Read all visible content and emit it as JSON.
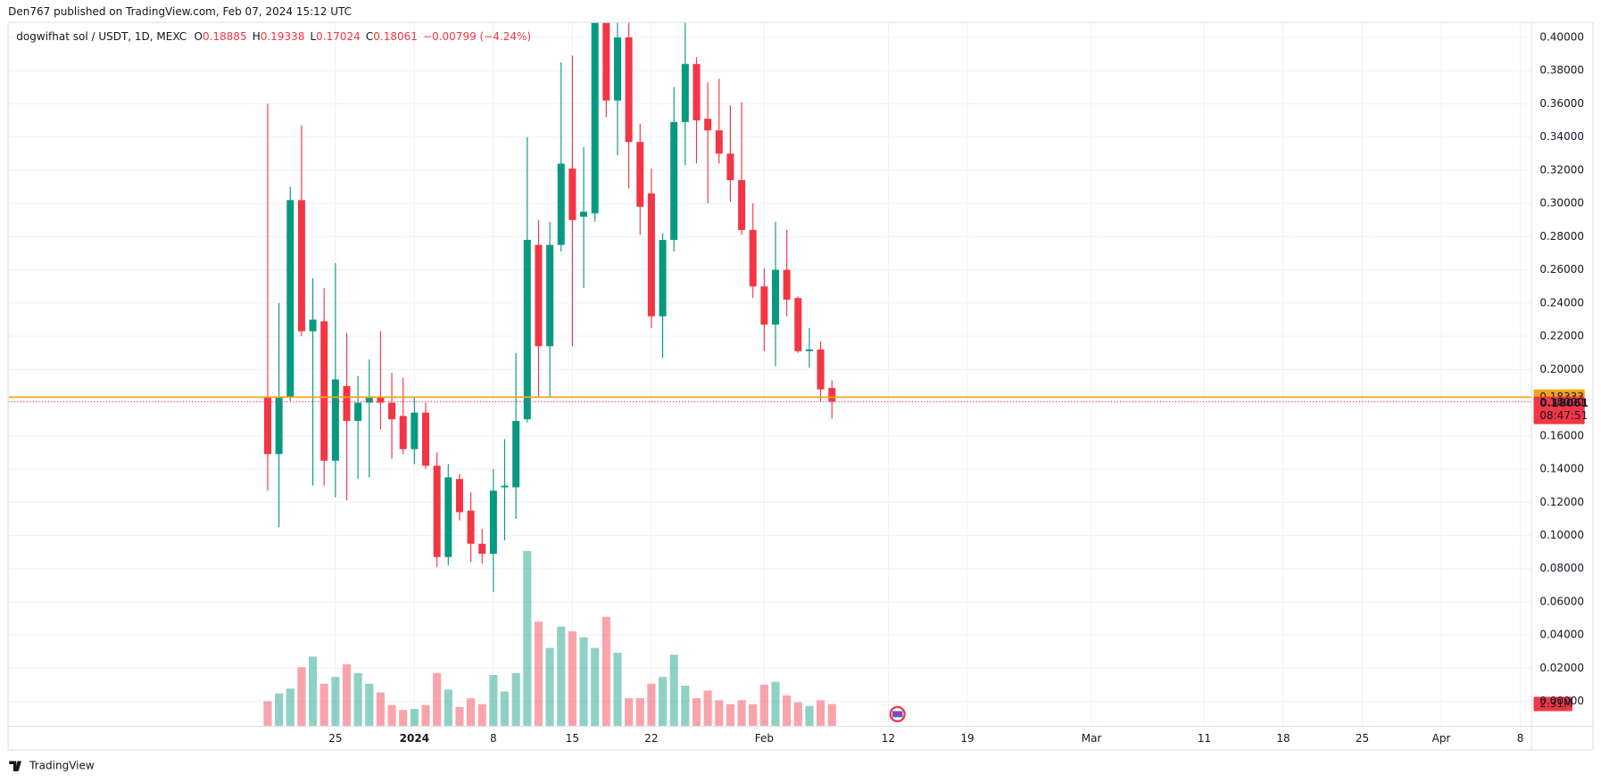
{
  "header": {
    "published": "Den767 published on TradingView.com, Feb 07, 2024 15:12 UTC",
    "symbol": "dogwifhat sol / USDT, 1D, MEXC",
    "ohlc_keys": [
      "O",
      "H",
      "L",
      "C"
    ],
    "change": "−0.00799 (−4.24%)"
  },
  "footer": {
    "brand": "TradingView"
  },
  "chart_data": {
    "type": "candlestick",
    "up_color": "#089981",
    "down_color": "#f23645",
    "x": [
      "2023-12-19",
      "2023-12-20",
      "2023-12-21",
      "2023-12-22",
      "2023-12-23",
      "2023-12-24",
      "2023-12-25",
      "2023-12-26",
      "2023-12-27",
      "2023-12-28",
      "2023-12-29",
      "2023-12-30",
      "2023-12-31",
      "2024-01-01",
      "2024-01-02",
      "2024-01-03",
      "2024-01-04",
      "2024-01-05",
      "2024-01-06",
      "2024-01-07",
      "2024-01-08",
      "2024-01-09",
      "2024-01-10",
      "2024-01-11",
      "2024-01-12",
      "2024-01-13",
      "2024-01-14",
      "2024-01-15",
      "2024-01-16",
      "2024-01-17",
      "2024-01-18",
      "2024-01-19",
      "2024-01-20",
      "2024-01-21",
      "2024-01-22",
      "2024-01-23",
      "2024-01-24",
      "2024-01-25",
      "2024-01-26",
      "2024-01-27",
      "2024-01-28",
      "2024-01-29",
      "2024-01-30",
      "2024-01-31",
      "2024-02-01",
      "2024-02-02",
      "2024-02-03",
      "2024-02-04",
      "2024-02-05",
      "2024-02-06",
      "2024-02-07"
    ],
    "open": [
      0.183,
      0.149,
      0.183,
      0.302,
      0.223,
      0.229,
      0.145,
      0.19,
      0.169,
      0.18,
      0.183,
      0.18,
      0.172,
      0.152,
      0.174,
      0.142,
      0.087,
      0.134,
      0.115,
      0.095,
      0.089,
      0.129,
      0.129,
      0.17,
      0.275,
      0.214,
      0.275,
      0.321,
      0.292,
      0.294,
      0.409,
      0.362,
      0.4,
      0.337,
      0.306,
      0.232,
      0.278,
      0.349,
      0.384,
      0.351,
      0.344,
      0.33,
      0.314,
      0.284,
      0.25,
      0.227,
      0.26,
      0.243,
      0.211,
      0.212,
      0.18885
    ],
    "high": [
      0.36,
      0.24,
      0.31,
      0.347,
      0.255,
      0.249,
      0.264,
      0.222,
      0.196,
      0.206,
      0.223,
      0.198,
      0.195,
      0.183,
      0.18,
      0.15,
      0.143,
      0.137,
      0.126,
      0.104,
      0.14,
      0.158,
      0.21,
      0.34,
      0.29,
      0.289,
      0.385,
      0.389,
      0.334,
      0.417,
      0.414,
      0.409,
      0.409,
      0.348,
      0.321,
      0.282,
      0.37,
      0.409,
      0.388,
      0.373,
      0.375,
      0.359,
      0.361,
      0.3,
      0.261,
      0.289,
      0.284,
      0.244,
      0.225,
      0.217,
      0.19338
    ],
    "low": [
      0.127,
      0.105,
      0.181,
      0.22,
      0.13,
      0.13,
      0.123,
      0.121,
      0.134,
      0.135,
      0.164,
      0.146,
      0.149,
      0.143,
      0.14,
      0.081,
      0.082,
      0.109,
      0.084,
      0.083,
      0.066,
      0.097,
      0.11,
      0.168,
      0.183,
      0.183,
      0.271,
      0.214,
      0.249,
      0.289,
      0.352,
      0.329,
      0.309,
      0.281,
      0.225,
      0.207,
      0.271,
      0.323,
      0.324,
      0.3,
      0.324,
      0.301,
      0.281,
      0.243,
      0.211,
      0.202,
      0.232,
      0.21,
      0.201,
      0.181,
      0.17024
    ],
    "close": [
      0.149,
      0.183,
      0.302,
      0.223,
      0.23,
      0.145,
      0.194,
      0.169,
      0.18,
      0.183,
      0.18,
      0.17,
      0.152,
      0.174,
      0.142,
      0.087,
      0.135,
      0.114,
      0.095,
      0.089,
      0.127,
      0.13,
      0.169,
      0.278,
      0.214,
      0.275,
      0.324,
      0.29,
      0.295,
      0.409,
      0.362,
      0.4,
      0.337,
      0.298,
      0.232,
      0.278,
      0.349,
      0.384,
      0.35,
      0.344,
      0.33,
      0.314,
      0.284,
      0.25,
      0.227,
      0.26,
      0.242,
      0.211,
      0.212,
      0.188,
      0.18061
    ],
    "volume": [
      2.6,
      3.4,
      3.9,
      6.1,
      7.2,
      4.4,
      5.1,
      6.4,
      5.5,
      4.4,
      3.5,
      2.2,
      1.7,
      1.8,
      2.2,
      5.5,
      3.8,
      2.0,
      2.9,
      2.3,
      5.3,
      3.6,
      5.5,
      18.1,
      10.8,
      8.1,
      10.3,
      9.8,
      9.2,
      8.1,
      11.3,
      7.6,
      2.9,
      2.9,
      4.4,
      5.1,
      7.4,
      4.2,
      2.9,
      3.7,
      2.7,
      2.3,
      2.7,
      2.3,
      4.3,
      4.6,
      3.2,
      2.5,
      2.1,
      2.7,
      2.31
    ],
    "volume_label": "2.31M",
    "price_line": {
      "value": 0.18333,
      "color": "#f7a21b"
    },
    "countdown": "08:47:51",
    "ylim": [
      -0.015,
      0.409
    ],
    "yticks": [
      {
        "value": 0,
        "label": "0.00000"
      },
      {
        "value": 0.02,
        "label": "0.02000"
      },
      {
        "value": 0.04,
        "label": "0.04000"
      },
      {
        "value": 0.06,
        "label": "0.06000"
      },
      {
        "value": 0.08,
        "label": "0.08000"
      },
      {
        "value": 0.1,
        "label": "0.10000"
      },
      {
        "value": 0.12,
        "label": "0.12000"
      },
      {
        "value": 0.14,
        "label": "0.14000"
      },
      {
        "value": 0.16,
        "label": "0.16000"
      },
      {
        "value": 0.18,
        "label": "0.18000"
      },
      {
        "value": 0.2,
        "label": "0.20000"
      },
      {
        "value": 0.22,
        "label": "0.22000"
      },
      {
        "value": 0.24,
        "label": "0.24000"
      },
      {
        "value": 0.26,
        "label": "0.26000"
      },
      {
        "value": 0.28,
        "label": "0.28000"
      },
      {
        "value": 0.3,
        "label": "0.30000"
      },
      {
        "value": 0.32,
        "label": "0.32000"
      },
      {
        "value": 0.34,
        "label": "0.34000"
      },
      {
        "value": 0.36,
        "label": "0.36000"
      },
      {
        "value": 0.38,
        "label": "0.38000"
      },
      {
        "value": 0.4,
        "label": "0.40000"
      }
    ],
    "xlim": [
      "2023-11-26",
      "2024-04-09"
    ],
    "xticks": [
      {
        "value": "2023-12-25",
        "label": "25"
      },
      {
        "value": "2024-01-01",
        "label": "2024"
      },
      {
        "value": "2024-01-08",
        "label": "8"
      },
      {
        "value": "2024-01-15",
        "label": "15"
      },
      {
        "value": "2024-01-22",
        "label": "22"
      },
      {
        "value": "2024-02-01",
        "label": "Feb"
      },
      {
        "value": "2024-02-12",
        "label": "12"
      },
      {
        "value": "2024-02-19",
        "label": "19"
      },
      {
        "value": "2024-03-01",
        "label": "Mar"
      },
      {
        "value": "2024-03-11",
        "label": "11"
      },
      {
        "value": "2024-03-18",
        "label": "18"
      },
      {
        "value": "2024-03-25",
        "label": "25"
      },
      {
        "value": "2024-04-01",
        "label": "Apr"
      },
      {
        "value": "2024-04-08",
        "label": "8"
      }
    ],
    "grid": true
  }
}
